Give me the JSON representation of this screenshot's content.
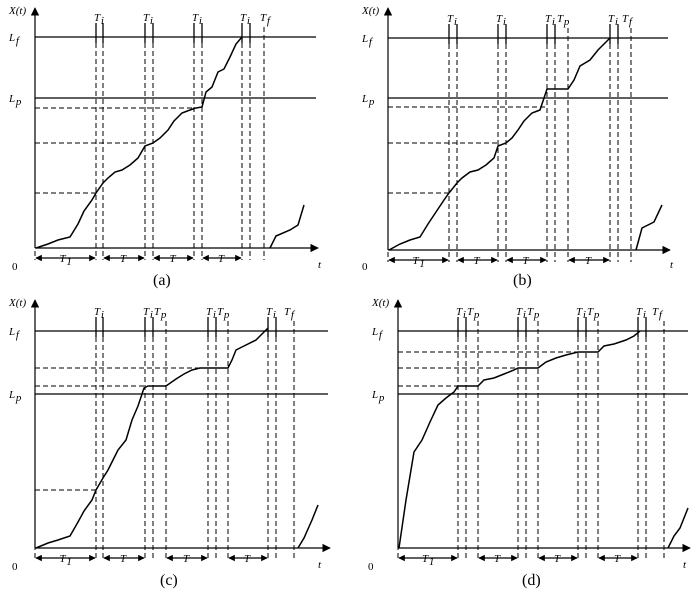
{
  "panels": [
    {
      "id": "a",
      "caption": "(a)",
      "y_label": "X(t)",
      "x_label": "t",
      "origin_label": "0",
      "level_labels": [
        "L",
        "f",
        "L",
        "p"
      ],
      "inspection_labels": [
        "T",
        "i",
        "T",
        "i",
        "T",
        "i",
        "T",
        "i"
      ],
      "other_labels": [
        "T",
        "f"
      ],
      "interval_labels": [
        "T",
        "1",
        "T",
        "T",
        "T"
      ]
    },
    {
      "id": "b",
      "caption": "(b)",
      "y_label": "X(t)",
      "x_label": "t",
      "origin_label": "0",
      "level_labels": [
        "L",
        "f",
        "L",
        "p"
      ],
      "inspection_labels": [
        "T",
        "i",
        "T",
        "i",
        "T",
        "i",
        "T",
        "i"
      ],
      "other_labels": [
        "T",
        "p",
        "T",
        "f"
      ],
      "interval_labels": [
        "T",
        "1",
        "T",
        "T",
        "T"
      ]
    },
    {
      "id": "c",
      "caption": "(c)",
      "y_label": "X(t)",
      "x_label": "t",
      "origin_label": "0",
      "level_labels": [
        "L",
        "f",
        "L",
        "p"
      ],
      "inspection_labels": [
        "T",
        "i",
        "T",
        "i",
        "T",
        "i",
        "T",
        "i"
      ],
      "other_labels": [
        "T",
        "p",
        "T",
        "p",
        "T",
        "f"
      ],
      "interval_labels": [
        "T",
        "1",
        "T",
        "T",
        "T"
      ]
    },
    {
      "id": "d",
      "caption": "(d)",
      "y_label": "X(t)",
      "x_label": "t",
      "origin_label": "0",
      "level_labels": [
        "L",
        "f",
        "L",
        "p"
      ],
      "inspection_labels": [
        "T",
        "i",
        "T",
        "i",
        "T",
        "i",
        "T",
        "i"
      ],
      "other_labels": [
        "T",
        "p",
        "T",
        "p",
        "T",
        "p",
        "T",
        "f"
      ],
      "interval_labels": [
        "T",
        "1",
        "T",
        "T",
        "T"
      ]
    }
  ]
}
